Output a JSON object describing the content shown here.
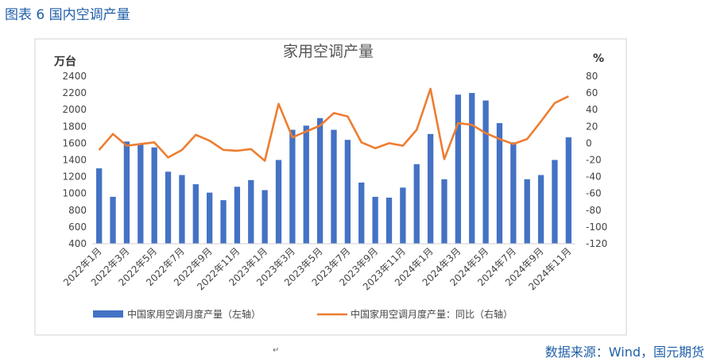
{
  "figure_title": "图表 6 国内空调产量",
  "source_text": "数据来源：Wind，国元期货",
  "footnote_mark": "↵",
  "colors": {
    "bar": "#4472c4",
    "line": "#ed7d31",
    "accent": "#1f5fa8"
  },
  "chart_data": {
    "type": "bar",
    "title": "家用空调产量",
    "categories": [
      "2022年1月",
      "2022年2月",
      "2022年3月",
      "2022年4月",
      "2022年5月",
      "2022年6月",
      "2022年7月",
      "2022年8月",
      "2022年9月",
      "2022年10月",
      "2022年11月",
      "2022年12月",
      "2023年1月",
      "2023年2月",
      "2023年3月",
      "2023年4月",
      "2023年5月",
      "2023年6月",
      "2023年7月",
      "2023年8月",
      "2023年9月",
      "2023年10月",
      "2023年11月",
      "2023年12月",
      "2024年1月",
      "2024年2月",
      "2024年3月",
      "2024年4月",
      "2024年5月",
      "2024年6月",
      "2024年7月",
      "2024年8月",
      "2024年9月",
      "2024年10月",
      "2024年11月"
    ],
    "visible_tick_labels": [
      "2022年1月",
      "2022年3月",
      "2022年5月",
      "2022年7月",
      "2022年9月",
      "2022年11月",
      "2023年1月",
      "2023年3月",
      "2023年5月",
      "2023年7月",
      "2023年9月",
      "2023年11月",
      "2024年1月",
      "2024年3月",
      "2024年5月",
      "2024年7月",
      "2024年9月",
      "2024年11月"
    ],
    "series": [
      {
        "name": "中国家用空调月度产量（左轴）",
        "type": "bar",
        "axis": "left",
        "values": [
          1300,
          960,
          1620,
          1590,
          1550,
          1260,
          1220,
          1110,
          1010,
          920,
          1080,
          1160,
          1040,
          1400,
          1760,
          1810,
          1900,
          1760,
          1640,
          1130,
          960,
          950,
          1070,
          1350,
          1710,
          1170,
          2180,
          2200,
          2110,
          1840,
          1610,
          1170,
          1220,
          1400,
          1670
        ]
      },
      {
        "name": "中国家用空调月度产量：同比（右轴）",
        "type": "line",
        "axis": "right",
        "values": [
          -8,
          11,
          -3,
          -1,
          1,
          -17,
          -8,
          10,
          3,
          -8,
          -9,
          -7,
          -21,
          47,
          7,
          14,
          21,
          36,
          32,
          1,
          -6,
          0,
          -3,
          16,
          65,
          -19,
          24,
          22,
          12,
          5,
          -1,
          5,
          26,
          48,
          56
        ]
      }
    ],
    "y_left": {
      "unit": "万台",
      "min": 400,
      "max": 2400,
      "step": 200
    },
    "y_right": {
      "unit": "%",
      "min": -120,
      "max": 80,
      "step": 20
    },
    "legend_position": "bottom",
    "grid": false
  }
}
